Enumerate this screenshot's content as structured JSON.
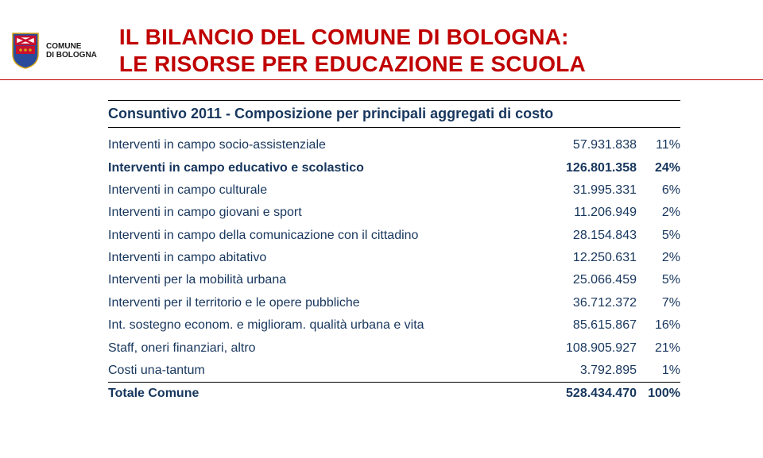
{
  "org": {
    "line1": "COMUNE",
    "line2": "DI BOLOGNA"
  },
  "title": {
    "line1": "IL BILANCIO DEL COMUNE DI BOLOGNA:",
    "line2": "LE RISORSE PER EDUCAZIONE E SCUOLA"
  },
  "subtitle": "Consuntivo 2011 - Composizione per principali aggregati di costo",
  "rows": [
    {
      "label": "Interventi in campo socio-assistenziale",
      "amount": "57.931.838",
      "pct": "11%",
      "bold": false
    },
    {
      "label": "Interventi in campo educativo e scolastico",
      "amount": "126.801.358",
      "pct": "24%",
      "bold": true
    },
    {
      "label": "Interventi in campo culturale",
      "amount": "31.995.331",
      "pct": "6%",
      "bold": false
    },
    {
      "label": "Interventi in campo giovani e sport",
      "amount": "11.206.949",
      "pct": "2%",
      "bold": false
    },
    {
      "label": "Interventi in campo della comunicazione con il cittadino",
      "amount": "28.154.843",
      "pct": "5%",
      "bold": false
    },
    {
      "label": "Interventi in campo abitativo",
      "amount": "12.250.631",
      "pct": "2%",
      "bold": false
    },
    {
      "label": "Interventi per la mobilità urbana",
      "amount": "25.066.459",
      "pct": "5%",
      "bold": false
    },
    {
      "label": "Interventi per il territorio e le opere pubbliche",
      "amount": "36.712.372",
      "pct": "7%",
      "bold": false
    },
    {
      "label": "Int. sostegno econom. e miglioram. qualità urbana e vita",
      "amount": "85.615.867",
      "pct": "16%",
      "bold": false
    },
    {
      "label": "Staff, oneri finanziari, altro",
      "amount": "108.905.927",
      "pct": "21%",
      "bold": false
    },
    {
      "label": "Costi una-tantum",
      "amount": "3.792.895",
      "pct": "1%",
      "bold": false
    }
  ],
  "total": {
    "label": "Totale Comune",
    "amount": "528.434.470",
    "pct": "100%"
  },
  "colors": {
    "title": "#c00000",
    "body": "#17365d",
    "rule": "#000000",
    "crest_blue": "#2a4b9b",
    "crest_red": "#c8102e",
    "crest_gold": "#d4a514"
  }
}
